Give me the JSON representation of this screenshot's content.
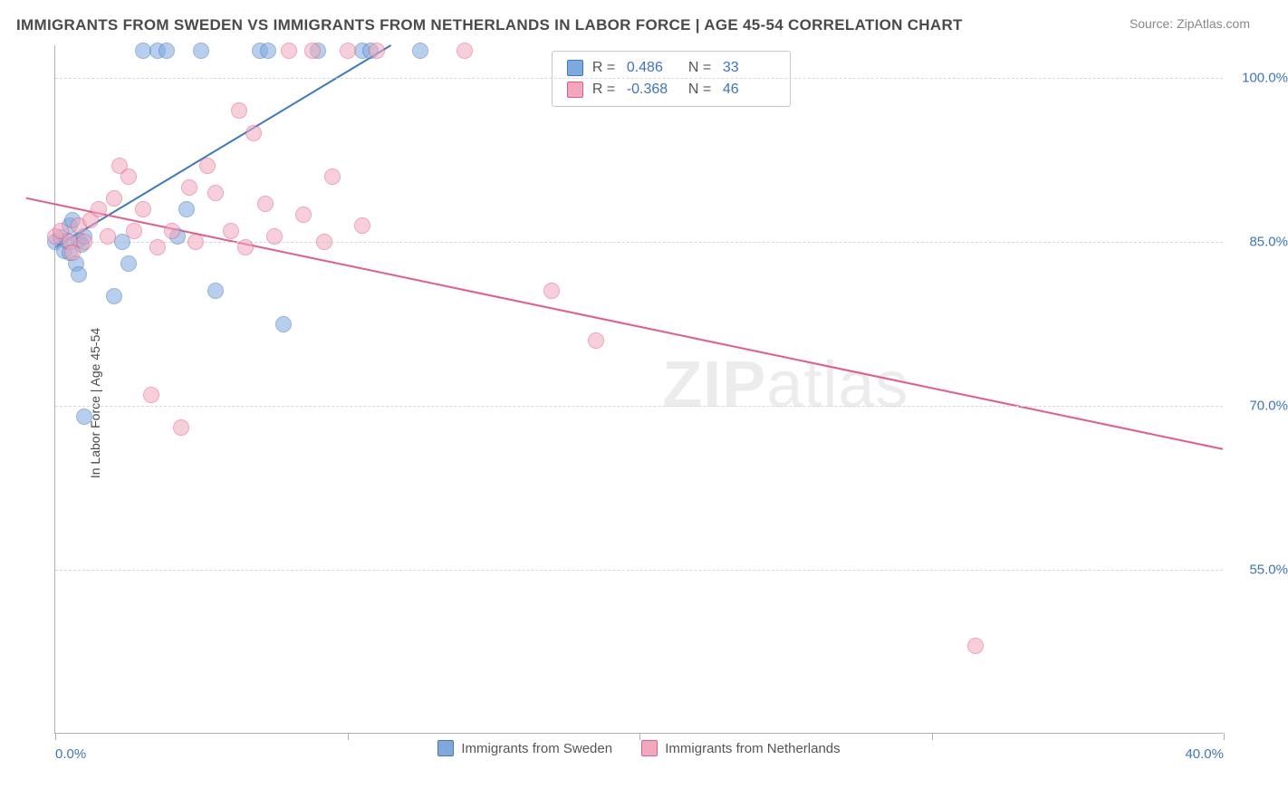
{
  "title": "IMMIGRANTS FROM SWEDEN VS IMMIGRANTS FROM NETHERLANDS IN LABOR FORCE | AGE 45-54 CORRELATION CHART",
  "source_prefix": "Source: ",
  "source_name": "ZipAtlas.com",
  "y_axis_label": "In Labor Force | Age 45-54",
  "watermark_bold": "ZIP",
  "watermark_thin": "atlas",
  "chart": {
    "type": "scatter",
    "xlim": [
      0,
      40
    ],
    "ylim": [
      40,
      103
    ],
    "y_ticks": [
      55.0,
      70.0,
      85.0,
      100.0
    ],
    "y_tick_labels": [
      "55.0%",
      "70.0%",
      "85.0%",
      "100.0%"
    ],
    "x_ticks": [
      0,
      10,
      20,
      30,
      40
    ],
    "x_tick_labels": [
      "0.0%",
      "",
      "",
      "",
      "40.0%"
    ],
    "background_color": "#ffffff",
    "grid_color": "#d8d8d8",
    "axis_color": "#b0b0b0",
    "tick_label_color": "#3b74c6",
    "point_radius": 9,
    "point_opacity": 0.55,
    "series": [
      {
        "id": "sweden",
        "label": "Immigrants from Sweden",
        "fill_color": "#7ea9dd",
        "stroke_color": "#3e7ac3",
        "trend": {
          "x1": 0,
          "y1": 84.5,
          "x2": 11.5,
          "y2": 103,
          "width": 2
        },
        "stats": {
          "R": "0.486",
          "N": "33"
        },
        "points": [
          [
            0.0,
            85.0
          ],
          [
            0.2,
            85.4
          ],
          [
            0.3,
            84.2
          ],
          [
            0.4,
            85.1
          ],
          [
            0.5,
            84.0
          ],
          [
            0.8,
            85.2
          ],
          [
            0.5,
            86.5
          ],
          [
            0.6,
            87.0
          ],
          [
            0.7,
            83.0
          ],
          [
            0.8,
            82.0
          ],
          [
            0.9,
            84.8
          ],
          [
            1.0,
            85.5
          ],
          [
            1.0,
            69.0
          ],
          [
            2.0,
            80.0
          ],
          [
            2.3,
            85.0
          ],
          [
            2.5,
            83.0
          ],
          [
            3.0,
            102.5
          ],
          [
            3.5,
            102.5
          ],
          [
            3.8,
            102.5
          ],
          [
            4.2,
            85.5
          ],
          [
            4.5,
            88.0
          ],
          [
            5.0,
            102.5
          ],
          [
            5.5,
            80.5
          ],
          [
            7.0,
            102.5
          ],
          [
            7.3,
            102.5
          ],
          [
            7.8,
            77.5
          ],
          [
            9.0,
            102.5
          ],
          [
            10.5,
            102.5
          ],
          [
            10.8,
            102.5
          ],
          [
            12.5,
            102.5
          ]
        ]
      },
      {
        "id": "netherlands",
        "label": "Immigrants from Netherlands",
        "fill_color": "#f2a8bc",
        "stroke_color": "#e75a85",
        "trend": {
          "x1": -1,
          "y1": 89.0,
          "x2": 40,
          "y2": 66.0,
          "width": 2
        },
        "stats": {
          "R": "-0.368",
          "N": "46"
        },
        "points": [
          [
            0.0,
            85.5
          ],
          [
            0.2,
            86.0
          ],
          [
            0.5,
            85.0
          ],
          [
            0.6,
            84.0
          ],
          [
            0.8,
            86.5
          ],
          [
            1.0,
            85.0
          ],
          [
            1.2,
            87.0
          ],
          [
            1.5,
            88.0
          ],
          [
            1.8,
            85.5
          ],
          [
            2.0,
            89.0
          ],
          [
            2.2,
            92.0
          ],
          [
            2.5,
            91.0
          ],
          [
            2.7,
            86.0
          ],
          [
            3.0,
            88.0
          ],
          [
            3.3,
            71.0
          ],
          [
            3.5,
            84.5
          ],
          [
            4.0,
            86.0
          ],
          [
            4.3,
            68.0
          ],
          [
            4.6,
            90.0
          ],
          [
            4.8,
            85.0
          ],
          [
            5.2,
            92.0
          ],
          [
            5.5,
            89.5
          ],
          [
            6.0,
            86.0
          ],
          [
            6.3,
            97.0
          ],
          [
            6.5,
            84.5
          ],
          [
            6.8,
            95.0
          ],
          [
            7.2,
            88.5
          ],
          [
            7.5,
            85.5
          ],
          [
            8.0,
            102.5
          ],
          [
            8.5,
            87.5
          ],
          [
            8.8,
            102.5
          ],
          [
            9.2,
            85.0
          ],
          [
            9.5,
            91.0
          ],
          [
            10.0,
            102.5
          ],
          [
            10.5,
            86.5
          ],
          [
            11.0,
            102.5
          ],
          [
            14.0,
            102.5
          ],
          [
            17.0,
            80.5
          ],
          [
            18.5,
            76.0
          ],
          [
            31.5,
            48.0
          ]
        ]
      }
    ],
    "legend_sweden": "Immigrants from Sweden",
    "legend_netherlands": "Immigrants from Netherlands"
  },
  "stats_labels": {
    "R": "R =",
    "N": "N ="
  }
}
